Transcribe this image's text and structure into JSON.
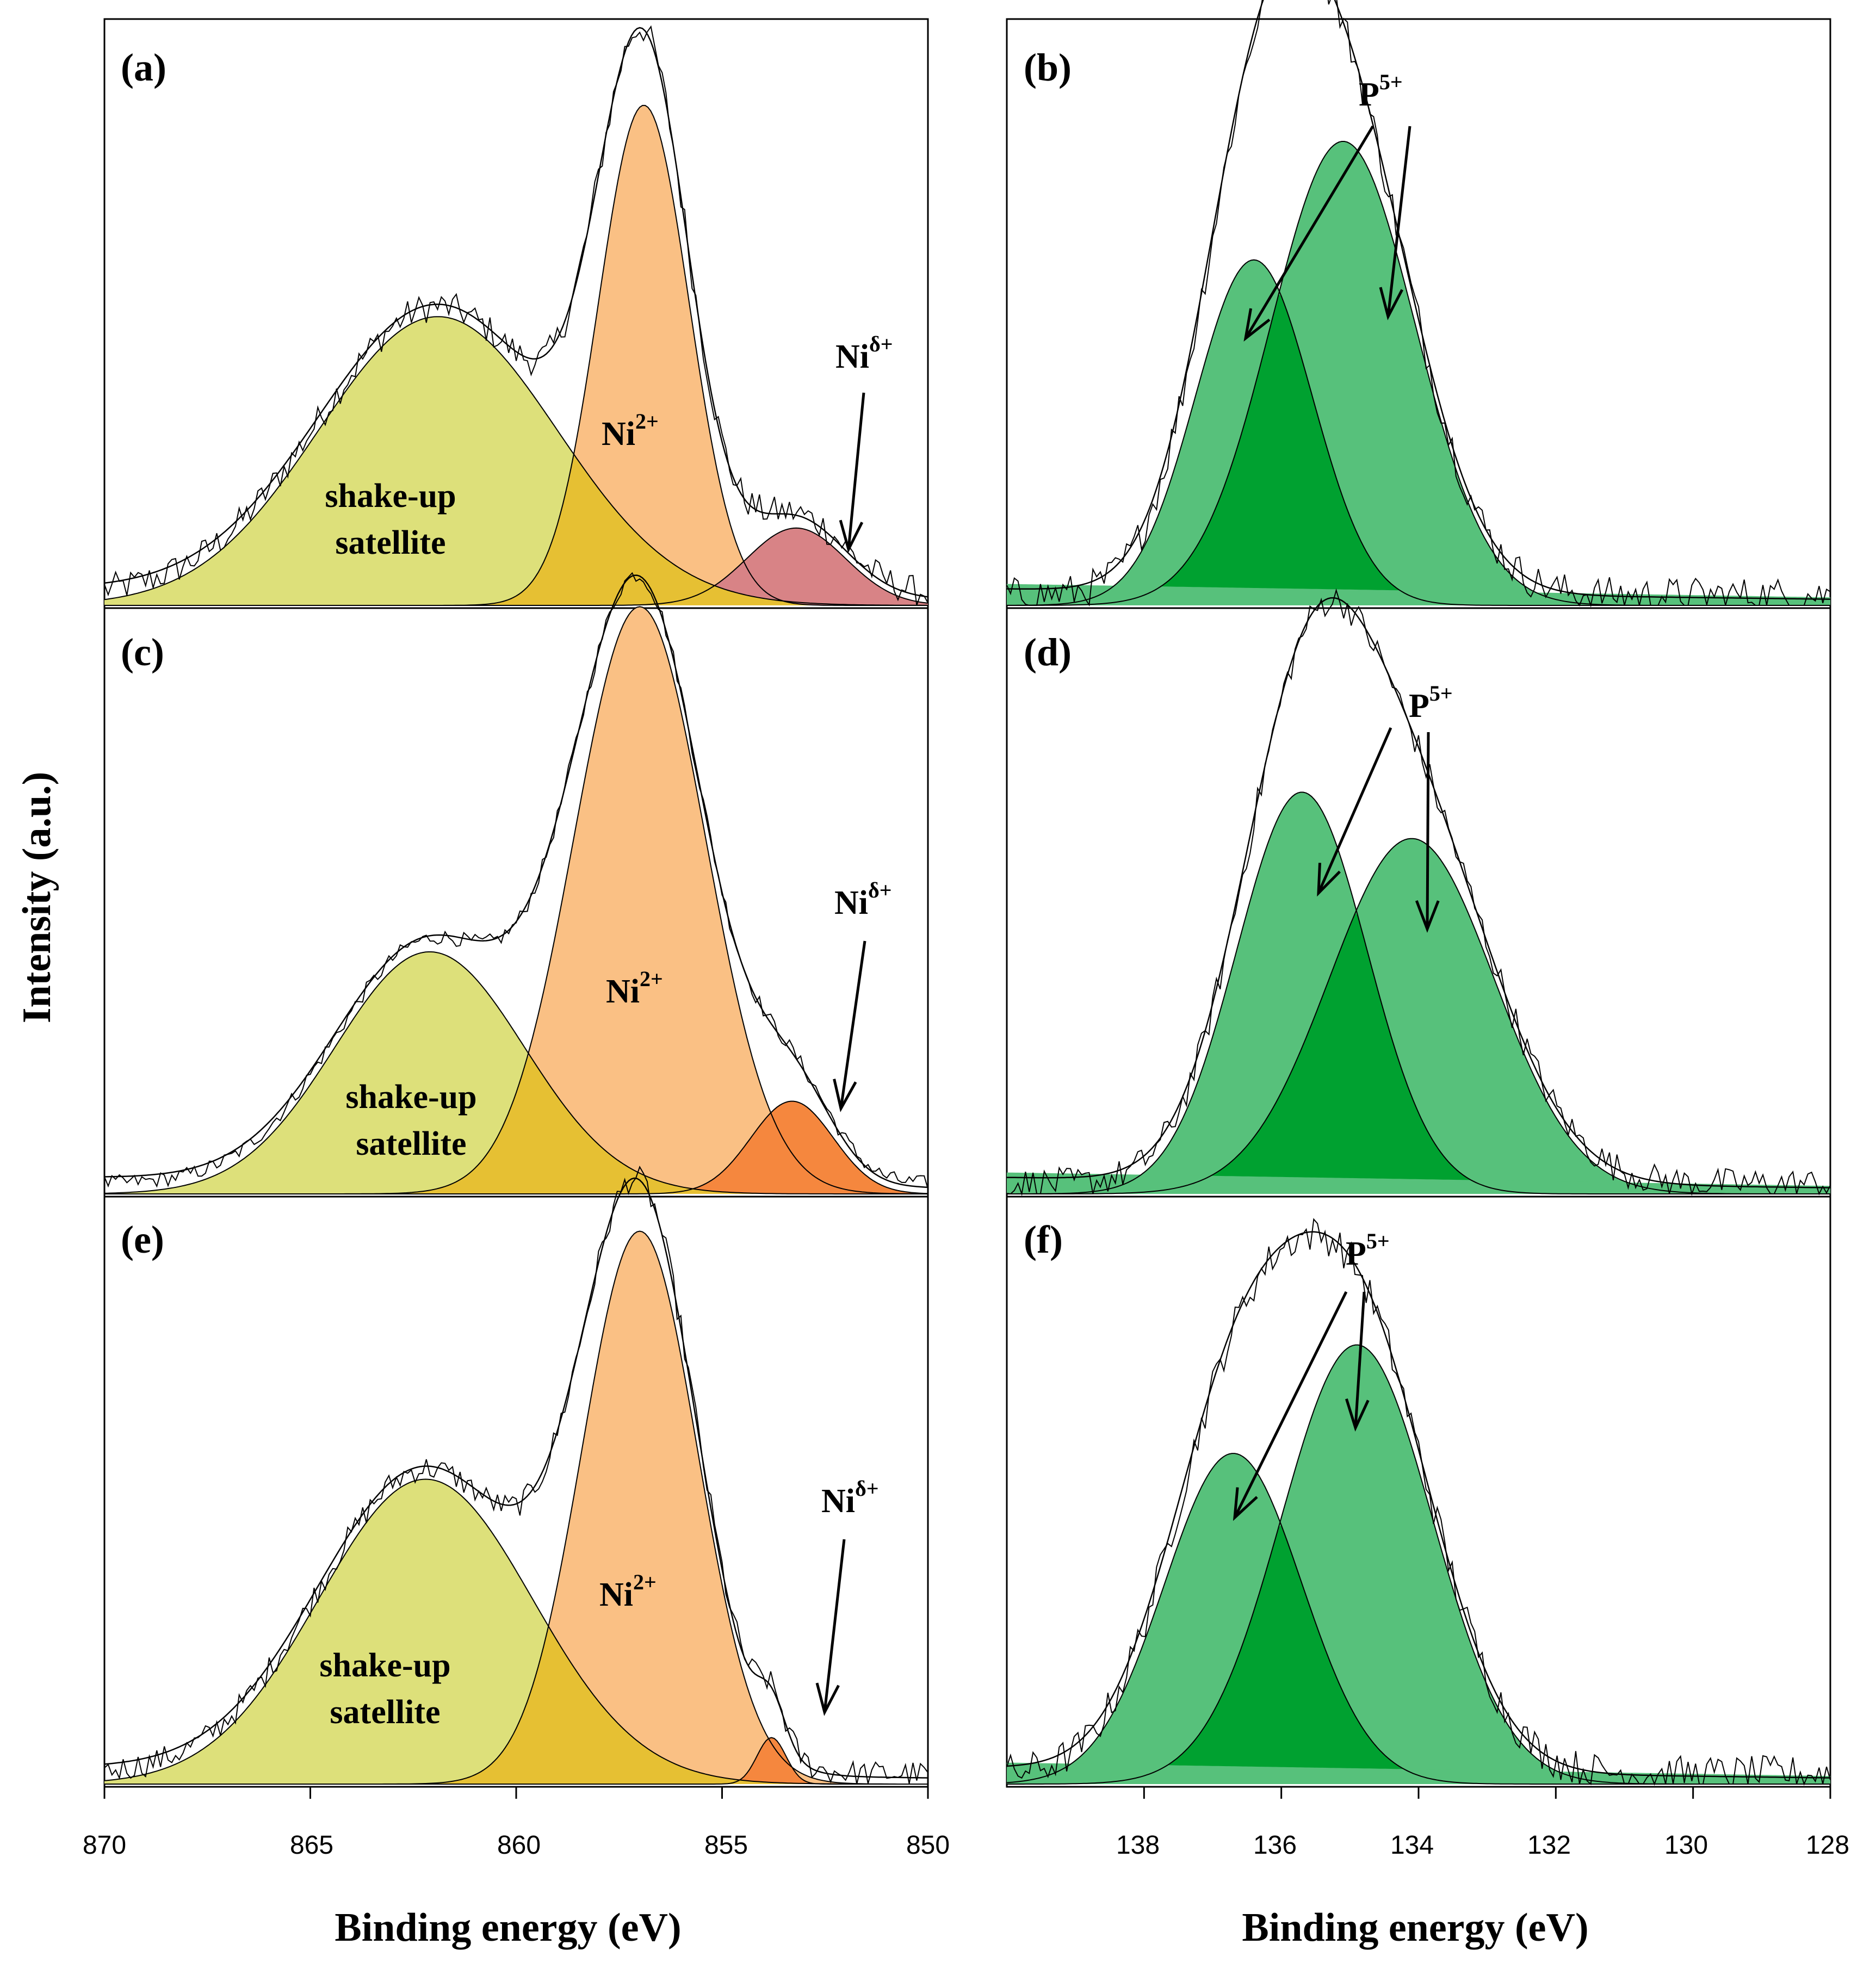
{
  "figure": {
    "ylabel": "Intensity (a.u.)",
    "xlabel_left": "Binding energy (eV)",
    "xlabel_right": "Binding energy (eV)"
  },
  "colors": {
    "satellite": "#dde07a",
    "overlap": "#e6c033",
    "ni2": "#fac084",
    "ni_delta_a": "#d88386",
    "ni_delta_ce": "#f5873e",
    "p_light": "#57c17b",
    "p_dark": "#00a130"
  },
  "annotations": {
    "a": {
      "sat1": "shake-up",
      "sat2": "satellite",
      "ni2": "Ni",
      "ni2_sup": "2+",
      "nid": "Ni",
      "nid_sup": "δ+"
    },
    "c": {
      "sat1": "shake-up",
      "sat2": "satellite",
      "ni2": "Ni",
      "ni2_sup": "2+",
      "nid": "Ni",
      "nid_sup": "δ+"
    },
    "e": {
      "sat1": "shake-up",
      "sat2": "satellite",
      "ni2": "Ni",
      "ni2_sup": "2+",
      "nid": "Ni",
      "nid_sup": "δ+"
    },
    "b": {
      "p": "P",
      "p_sup": "5+"
    },
    "d": {
      "p": "P",
      "p_sup": "5+"
    },
    "f": {
      "p": "P",
      "p_sup": "5+"
    }
  },
  "chart_data": [
    {
      "type": "area",
      "panel": "a",
      "label": "(a)",
      "xlim": [
        870,
        850
      ],
      "ylim": [
        0,
        1
      ],
      "xlabel": "",
      "ylabel": "",
      "series": [
        {
          "name": "shake-up satellite",
          "center": 861.9,
          "sigma": 2.9,
          "amplitude": 0.56
        },
        {
          "name": "Ni2+",
          "center": 856.9,
          "sigma": 1.1,
          "amplitude": 0.97
        },
        {
          "name": "Niδ+",
          "center": 853.2,
          "sigma": 1.2,
          "amplitude": 0.15
        }
      ],
      "noise": 0.03
    },
    {
      "type": "area",
      "panel": "c",
      "label": "(c)",
      "xlim": [
        870,
        850
      ],
      "ylim": [
        0,
        1
      ],
      "xlabel": "",
      "ylabel": "",
      "series": [
        {
          "name": "shake-up satellite",
          "center": 862.1,
          "sigma": 2.3,
          "amplitude": 0.47
        },
        {
          "name": "Ni2+",
          "center": 857.0,
          "sigma": 1.6,
          "amplitude": 1.14
        },
        {
          "name": "Niδ+",
          "center": 853.3,
          "sigma": 1.0,
          "amplitude": 0.18
        }
      ],
      "noise": 0.015
    },
    {
      "type": "area",
      "panel": "e",
      "label": "(e)",
      "xlim": [
        870,
        850
      ],
      "ylim": [
        0,
        1
      ],
      "xlabel": "",
      "ylabel": "",
      "series": [
        {
          "name": "shake-up satellite",
          "center": 862.2,
          "sigma": 2.6,
          "amplitude": 0.59
        },
        {
          "name": "Ni2+",
          "center": 857.0,
          "sigma": 1.4,
          "amplitude": 1.07
        },
        {
          "name": "Niδ+",
          "center": 853.8,
          "sigma": 0.35,
          "amplitude": 0.09
        }
      ],
      "noise": 0.025
    },
    {
      "type": "area",
      "panel": "b",
      "label": "(b)",
      "xlim": [
        140,
        128
      ],
      "ylim": [
        0,
        1
      ],
      "xlabel": "",
      "ylabel": "",
      "series": [
        {
          "name": "P5+",
          "center": 136.4,
          "sigma": 0.85,
          "amplitude": 0.67
        },
        {
          "name": "P5+",
          "center": 135.1,
          "sigma": 1.05,
          "amplitude": 0.9
        }
      ],
      "noise": 0.035
    },
    {
      "type": "area",
      "panel": "d",
      "label": "(d)",
      "xlim": [
        140,
        128
      ],
      "ylim": [
        0,
        1
      ],
      "xlabel": "",
      "ylabel": "",
      "series": [
        {
          "name": "P5+",
          "center": 135.7,
          "sigma": 0.95,
          "amplitude": 0.78
        },
        {
          "name": "P5+",
          "center": 134.1,
          "sigma": 1.2,
          "amplitude": 0.69
        }
      ],
      "noise": 0.03
    },
    {
      "type": "area",
      "panel": "f",
      "label": "(f)",
      "xlim": [
        140,
        128
      ],
      "ylim": [
        0,
        1
      ],
      "xlabel": "",
      "ylabel": "",
      "series": [
        {
          "name": "P5+",
          "center": 136.7,
          "sigma": 1.0,
          "amplitude": 0.64
        },
        {
          "name": "P5+",
          "center": 134.9,
          "sigma": 1.1,
          "amplitude": 0.85
        }
      ],
      "noise": 0.035
    }
  ],
  "ticks_left": [
    "870",
    "865",
    "860",
    "855",
    "850"
  ],
  "ticks_left_values": [
    870,
    865,
    860,
    855,
    850
  ],
  "ticks_right": [
    "138",
    "136",
    "134",
    "132",
    "130",
    "128"
  ],
  "ticks_right_values": [
    138,
    136,
    134,
    132,
    130,
    128
  ]
}
